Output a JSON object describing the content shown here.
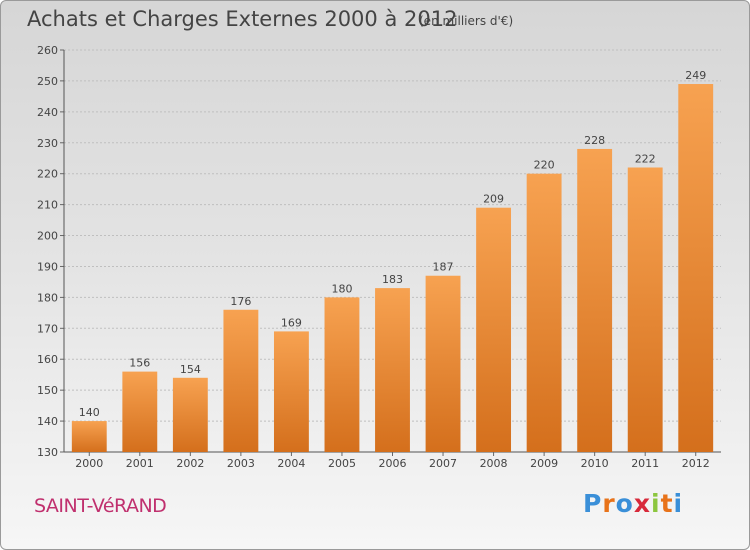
{
  "title": "Achats et Charges Externes 2000 à 2012",
  "subtitle": "(en milliers d'€)",
  "commune": "SAINT-VéRAND",
  "logo": {
    "letters": [
      {
        "ch": "P",
        "color": "#3a8fd8"
      },
      {
        "ch": "r",
        "color": "#e8731a"
      },
      {
        "ch": "o",
        "color": "#3a8fd8"
      },
      {
        "ch": "x",
        "color": "#d8293a"
      },
      {
        "ch": "i",
        "color": "#8cc63f"
      },
      {
        "ch": "t",
        "color": "#e8731a"
      },
      {
        "ch": "i",
        "color": "#3a8fd8"
      }
    ]
  },
  "colors": {
    "bar_top": "#f7a251",
    "bar_bottom": "#d46f1c",
    "grid": "#bfbfbf",
    "text": "#444444"
  },
  "chart_data": {
    "type": "bar",
    "categories": [
      "2000",
      "2001",
      "2002",
      "2003",
      "2004",
      "2005",
      "2006",
      "2007",
      "2008",
      "2009",
      "2010",
      "2011",
      "2012"
    ],
    "values": [
      140,
      156,
      154,
      176,
      169,
      180,
      183,
      187,
      209,
      220,
      228,
      222,
      249
    ],
    "ylim": [
      130,
      260
    ],
    "yticks": [
      130,
      140,
      150,
      160,
      170,
      180,
      190,
      200,
      210,
      220,
      230,
      240,
      250,
      260
    ],
    "grid": true
  }
}
